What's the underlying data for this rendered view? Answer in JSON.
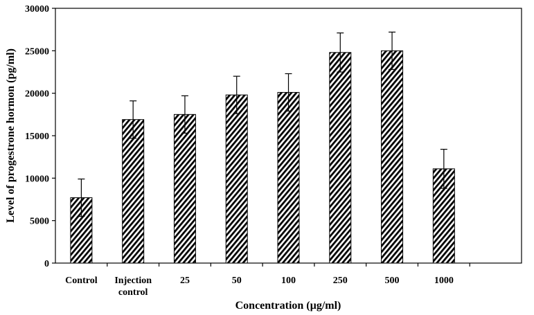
{
  "chart_data": {
    "type": "bar",
    "title": "",
    "xlabel": "Concentration (µg/ml)",
    "ylabel": "Level of progestrone hormon (pg/ml)",
    "ylim": [
      0,
      30000
    ],
    "yticks": [
      "0",
      "5000",
      "10000",
      "15000",
      "20000",
      "25000",
      "30000"
    ],
    "categories": [
      [
        "Control"
      ],
      [
        "Injection",
        "control"
      ],
      [
        "25"
      ],
      [
        "50"
      ],
      [
        "100"
      ],
      [
        "250"
      ],
      [
        "500"
      ],
      [
        "1000"
      ],
      [
        ""
      ]
    ],
    "values": [
      7700,
      16900,
      17500,
      19800,
      20100,
      24800,
      25000,
      11100,
      null
    ],
    "errors": [
      2200,
      2200,
      2200,
      2200,
      2200,
      2300,
      2200,
      2300,
      null
    ],
    "bar_pattern": "diagonal-hatch",
    "bar_color": "#000000",
    "grid": false,
    "legend": "none"
  }
}
